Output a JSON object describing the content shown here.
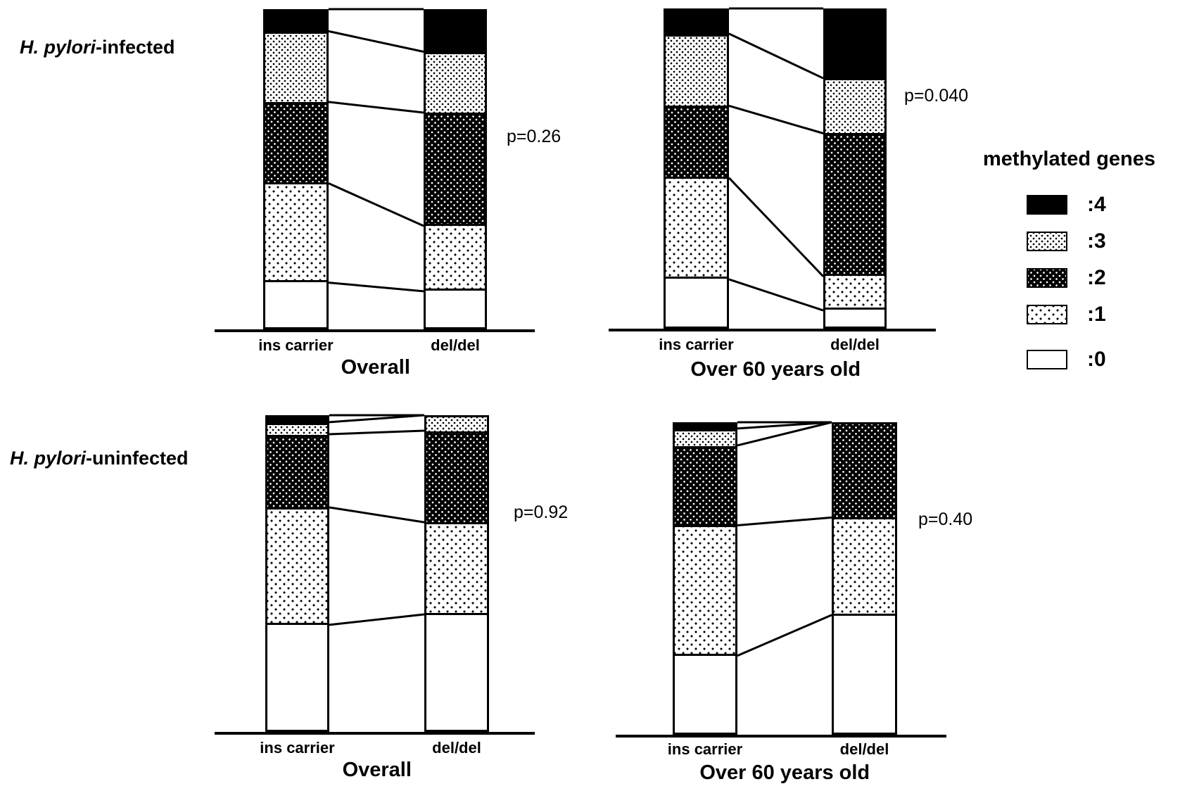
{
  "figure": {
    "group_labels": [
      {
        "italic": "H. pylori",
        "rest": "-infected"
      },
      {
        "italic": "H. pylori",
        "rest": "-uninfected"
      }
    ]
  },
  "colors": {
    "ink": "#000000",
    "paper": "#ffffff"
  },
  "chart_data": {
    "type": "bar",
    "subtype": "100pct-stacked-bar-pair",
    "stack_order_top_to_bottom": [
      "4",
      "3",
      "2",
      "1",
      "0"
    ],
    "categories": [
      "ins carrier",
      "del/del"
    ],
    "charts": [
      {
        "group": "H. pylori-infected",
        "title": "Overall",
        "p_value": "p=0.26",
        "categories": [
          "ins carrier",
          "del/del"
        ],
        "values_pct": [
          {
            "4": 6.9,
            "3": 22.1,
            "2": 25.4,
            "1": 31.0,
            "0": 14.6
          },
          {
            "4": 13.3,
            "3": 19.0,
            "2": 35.4,
            "1": 20.4,
            "0": 11.9
          }
        ]
      },
      {
        "group": "H. pylori-infected",
        "title": "Over 60 years old",
        "p_value": "p=0.040",
        "categories": [
          "ins carrier",
          "del/del"
        ],
        "values_pct": [
          {
            "4": 7.9,
            "3": 22.5,
            "2": 22.5,
            "1": 31.7,
            "0": 15.4
          },
          {
            "4": 21.8,
            "3": 17.2,
            "2": 44.7,
            "1": 10.6,
            "0": 5.7
          }
        ]
      },
      {
        "group": "H. pylori-uninfected",
        "title": "Overall",
        "p_value": "p=0.92",
        "categories": [
          "ins carrier",
          "del/del"
        ],
        "values_pct": [
          {
            "4": 2.2,
            "3": 3.8,
            "2": 23.1,
            "1": 37.1,
            "0": 33.8
          },
          {
            "4": 0,
            "3": 4.9,
            "2": 28.9,
            "1": 29.1,
            "0": 37.1
          }
        ]
      },
      {
        "group": "H. pylori-uninfected",
        "title": "Over 60 years old",
        "p_value": "p=0.40",
        "categories": [
          "ins carrier",
          "del/del"
        ],
        "values_pct": [
          {
            "4": 2.0,
            "3": 5.4,
            "2": 25.6,
            "1": 41.7,
            "0": 25.3
          },
          {
            "4": 0,
            "3": 0,
            "2": 30.5,
            "1": 31.2,
            "0": 38.3
          }
        ]
      }
    ],
    "legend": {
      "title": "methylated genes",
      "entries": [
        {
          "label": ":4",
          "key": "4",
          "swatch": "solid-black"
        },
        {
          "label": ":3",
          "key": "3",
          "swatch": "black-dots-on-white-dense"
        },
        {
          "label": ":2",
          "key": "2",
          "swatch": "white-dots-on-black"
        },
        {
          "label": ":1",
          "key": "1",
          "swatch": "black-dots-on-white-sparse"
        },
        {
          "label": ":0",
          "key": "0",
          "swatch": "white"
        }
      ]
    }
  }
}
